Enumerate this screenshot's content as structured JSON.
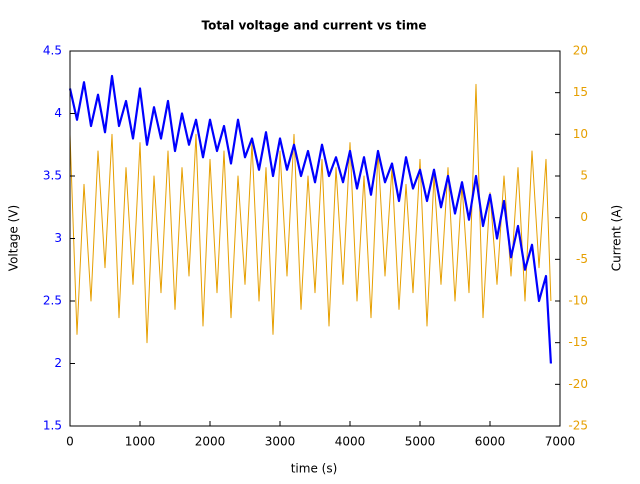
{
  "chart_data": {
    "type": "line",
    "title": "Total voltage and current vs time",
    "x_label": "time (s)",
    "y_label": "Voltage (V)",
    "y2_label": "Current (A)",
    "x": [
      0,
      100,
      200,
      300,
      400,
      500,
      600,
      700,
      800,
      900,
      1000,
      1100,
      1200,
      1300,
      1400,
      1500,
      1600,
      1700,
      1800,
      1900,
      2000,
      2100,
      2200,
      2300,
      2400,
      2500,
      2600,
      2700,
      2800,
      2900,
      3000,
      3100,
      3200,
      3300,
      3400,
      3500,
      3600,
      3700,
      3800,
      3900,
      4000,
      4100,
      4200,
      4300,
      4400,
      4500,
      4600,
      4700,
      4800,
      4900,
      5000,
      5100,
      5200,
      5300,
      5400,
      5500,
      5600,
      5700,
      5800,
      5900,
      6000,
      6100,
      6200,
      6300,
      6400,
      6500,
      6600,
      6700,
      6800,
      6870
    ],
    "series": [
      {
        "name": "Voltage",
        "color": "#0000ff",
        "axis": "y",
        "values": [
          4.2,
          3.95,
          4.25,
          3.9,
          4.15,
          3.85,
          4.3,
          3.9,
          4.1,
          3.8,
          4.2,
          3.75,
          4.05,
          3.8,
          4.1,
          3.7,
          4.0,
          3.75,
          3.95,
          3.65,
          3.95,
          3.7,
          3.9,
          3.6,
          3.95,
          3.65,
          3.8,
          3.55,
          3.85,
          3.5,
          3.8,
          3.55,
          3.75,
          3.5,
          3.7,
          3.45,
          3.75,
          3.5,
          3.65,
          3.45,
          3.7,
          3.4,
          3.65,
          3.35,
          3.7,
          3.45,
          3.6,
          3.3,
          3.65,
          3.4,
          3.55,
          3.3,
          3.55,
          3.25,
          3.5,
          3.2,
          3.45,
          3.15,
          3.5,
          3.1,
          3.35,
          3.0,
          3.3,
          2.85,
          3.1,
          2.75,
          2.95,
          2.5,
          2.7,
          2.0
        ]
      },
      {
        "name": "Current",
        "color": "#e69f00",
        "axis": "y2",
        "values": [
          10,
          -14,
          4,
          -10,
          8,
          -6,
          10,
          -12,
          6,
          -8,
          9,
          -15,
          5,
          -9,
          8,
          -11,
          6,
          -7,
          10,
          -13,
          7,
          -9,
          8,
          -12,
          5,
          -8,
          9,
          -10,
          6,
          -14,
          8,
          -7,
          10,
          -11,
          5,
          -9,
          7,
          -13,
          6,
          -8,
          9,
          -10,
          5,
          -12,
          8,
          -7,
          6,
          -11,
          4,
          -9,
          7,
          -13,
          5,
          -8,
          6,
          -10,
          4,
          -9,
          16,
          -12,
          3,
          -8,
          5,
          -7,
          6,
          -10,
          8,
          -6,
          7,
          -10
        ]
      }
    ],
    "xlim": [
      0,
      7000
    ],
    "xticks": [
      0,
      1000,
      2000,
      3000,
      4000,
      5000,
      6000,
      7000
    ],
    "ylim": [
      1.5,
      4.5
    ],
    "yticks": [
      1.5,
      2,
      2.5,
      3,
      3.5,
      4,
      4.5
    ],
    "y2lim": [
      -25,
      20
    ],
    "y2ticks": [
      -25,
      -20,
      -15,
      -10,
      -5,
      0,
      5,
      10,
      15,
      20
    ]
  }
}
